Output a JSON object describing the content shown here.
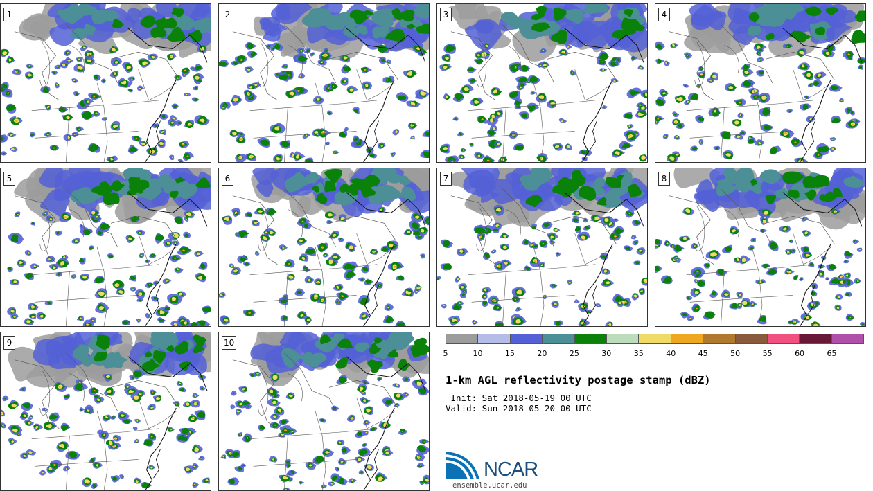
{
  "panels": [
    {
      "label": "1"
    },
    {
      "label": "2"
    },
    {
      "label": "3"
    },
    {
      "label": "4"
    },
    {
      "label": "5"
    },
    {
      "label": "6"
    },
    {
      "label": "7"
    },
    {
      "label": "8"
    },
    {
      "label": "9"
    },
    {
      "label": "10"
    }
  ],
  "colorbar": {
    "colors": [
      "#9c9c9c",
      "#b6bce8",
      "#5460d6",
      "#4d8f96",
      "#0a820a",
      "#bcdcbc",
      "#f0da68",
      "#eea820",
      "#b07a2e",
      "#8a5a3c",
      "#f05080",
      "#6a1838",
      "#b050a8"
    ],
    "ticks": [
      "5",
      "10",
      "15",
      "20",
      "25",
      "30",
      "35",
      "40",
      "45",
      "50",
      "55",
      "60",
      "65"
    ]
  },
  "title": "1-km AGL reflectivity postage stamp (dBZ)",
  "init": " Init: Sat 2018-05-19 00 UTC",
  "valid": "Valid: Sun 2018-05-20 00 UTC",
  "logo": {
    "text": "NCAR",
    "url": "ensemble.ucar.edu"
  }
}
